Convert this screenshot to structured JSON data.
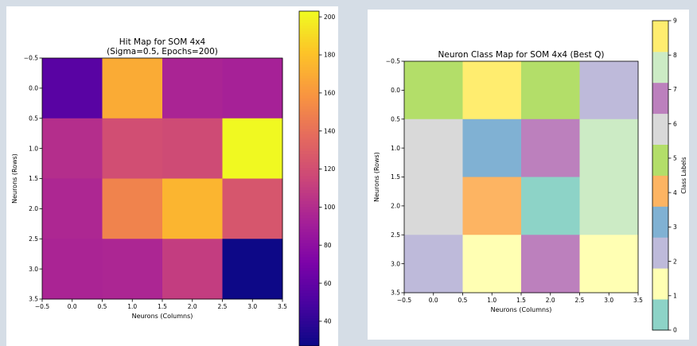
{
  "chart_data": [
    {
      "type": "heatmap",
      "title": "Hit Map for SOM 4x4",
      "subtitle": "(Sigma=0.5, Epochs=200)",
      "xlabel": "Neurons (Columns)",
      "ylabel": "Neurons (Rows)",
      "x_ticks": [
        "−0.5",
        "0.0",
        "0.5",
        "1.0",
        "1.5",
        "2.0",
        "2.5",
        "3.0",
        "3.5"
      ],
      "y_ticks": [
        "−0.5",
        "0.0",
        "0.5",
        "1.0",
        "1.5",
        "2.0",
        "2.5",
        "3.0",
        "3.5"
      ],
      "xlim": [
        -0.5,
        3.5
      ],
      "ylim": [
        3.5,
        -0.5
      ],
      "colormap": "plasma",
      "colorbar_range": [
        27,
        203
      ],
      "colorbar_ticks": [
        "40",
        "60",
        "80",
        "100",
        "120",
        "140",
        "160",
        "180",
        "200"
      ],
      "colorbar_tick_values": [
        40,
        60,
        80,
        100,
        120,
        140,
        160,
        180,
        200
      ],
      "values": [
        [
          56,
          170,
          95,
          93
        ],
        [
          101,
          120,
          118,
          203
        ],
        [
          97,
          150,
          175,
          125
        ],
        [
          95,
          96,
          110,
          27
        ]
      ]
    },
    {
      "type": "heatmap",
      "title": "Neuron Class Map for SOM 4x4 (Best Q)",
      "xlabel": "Neurons (Columns)",
      "ylabel": "Neurons (Rows)",
      "x_ticks": [
        "−0.5",
        "0.0",
        "0.5",
        "1.0",
        "1.5",
        "2.0",
        "2.5",
        "3.0",
        "3.5"
      ],
      "y_ticks": [
        "−0.5",
        "0.0",
        "0.5",
        "1.0",
        "1.5",
        "2.0",
        "2.5",
        "3.0",
        "3.5"
      ],
      "xlim": [
        -0.5,
        3.5
      ],
      "ylim": [
        3.5,
        -0.5
      ],
      "colormap": "Set3",
      "colorbar_label": "Class Labels",
      "colorbar_range": [
        0,
        9
      ],
      "colorbar_ticks": [
        "0",
        "1",
        "2",
        "3",
        "4",
        "5",
        "6",
        "7",
        "8",
        "9"
      ],
      "colorbar_tick_values": [
        0,
        1,
        2,
        3,
        4,
        5,
        6,
        7,
        8,
        9
      ],
      "class_colors": [
        "#8dd3c7",
        "#ffffb3",
        "#bebada",
        "#80b1d3",
        "#fdb462",
        "#b3de69",
        "#d9d9d9",
        "#bc80bd",
        "#ccebc5",
        "#ffed6f"
      ],
      "values": [
        [
          5,
          9,
          5,
          2
        ],
        [
          6,
          3,
          7,
          8
        ],
        [
          6,
          4,
          0,
          8
        ],
        [
          2,
          1,
          7,
          1
        ]
      ]
    }
  ]
}
